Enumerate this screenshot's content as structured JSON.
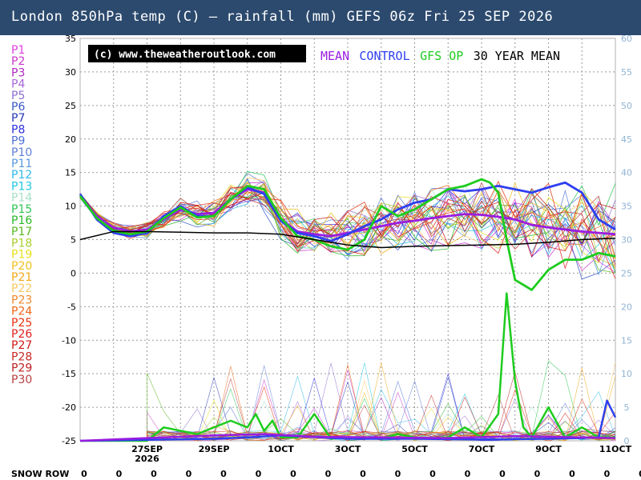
{
  "title": "London 850hPa temp (C) — rainfall (mm)   GEFS 06z Fri 25 SEP 2026",
  "credit": "(c) www.theweatheroutlook.com",
  "legend": [
    {
      "label": "MEAN",
      "color": "#9a1de0"
    },
    {
      "label": "CONTROL",
      "color": "#2f3ff0"
    },
    {
      "label": "GFS OP",
      "color": "#1ecc1e"
    },
    {
      "label": "30 YEAR MEAN",
      "color": "#000000"
    }
  ],
  "members": [
    {
      "label": "P1",
      "color": "#e040e0"
    },
    {
      "label": "P2",
      "color": "#c838c8"
    },
    {
      "label": "P3",
      "color": "#b028c0"
    },
    {
      "label": "P4",
      "color": "#a868d8"
    },
    {
      "label": "P5",
      "color": "#9070d0"
    },
    {
      "label": "P6",
      "color": "#3858c8"
    },
    {
      "label": "P7",
      "color": "#2838b8"
    },
    {
      "label": "P8",
      "color": "#3030e0"
    },
    {
      "label": "P9",
      "color": "#5070d8"
    },
    {
      "label": "P10",
      "color": "#6080d8"
    },
    {
      "label": "P11",
      "color": "#5898e0"
    },
    {
      "label": "P12",
      "color": "#30b8e8"
    },
    {
      "label": "P13",
      "color": "#20c8e0"
    },
    {
      "label": "P14",
      "color": "#a8e0c8"
    },
    {
      "label": "P15",
      "color": "#30c858"
    },
    {
      "label": "P16",
      "color": "#28b828"
    },
    {
      "label": "P17",
      "color": "#58b820"
    },
    {
      "label": "P18",
      "color": "#a8d030"
    },
    {
      "label": "P19",
      "color": "#e8e020"
    },
    {
      "label": "P20",
      "color": "#f0c020"
    },
    {
      "label": "P21",
      "color": "#f0a818"
    },
    {
      "label": "P22",
      "color": "#f8c860"
    },
    {
      "label": "P23",
      "color": "#f08830"
    },
    {
      "label": "P24",
      "color": "#f06818"
    },
    {
      "label": "P25",
      "color": "#e83010"
    },
    {
      "label": "P26",
      "color": "#e02020"
    },
    {
      "label": "P27",
      "color": "#d01818"
    },
    {
      "label": "P28",
      "color": "#c82828"
    },
    {
      "label": "P29",
      "color": "#c02020"
    },
    {
      "label": "P30",
      "color": "#b84040"
    }
  ],
  "snow_row": {
    "label": "SNOW ROW",
    "values": [
      0,
      0,
      0,
      0,
      0,
      0,
      0,
      0,
      0,
      0,
      0,
      0,
      0,
      0,
      0,
      0,
      0
    ]
  },
  "chart_data": {
    "type": "line",
    "title": "London 850hPa temp (C) — rainfall (mm)   GEFS 06z Fri 25 SEP 2026",
    "left_axis": {
      "label": "850hPa temp (C)",
      "ylim": [
        -25,
        35
      ],
      "ticks": [
        35,
        30,
        25,
        20,
        15,
        10,
        5,
        0,
        -5,
        -10,
        -15,
        -20,
        -25
      ]
    },
    "right_axis": {
      "label": "rainfall (mm)",
      "ylim": [
        0,
        60
      ],
      "ticks": [
        60,
        55,
        50,
        45,
        40,
        35,
        30,
        25,
        20,
        15,
        10,
        5,
        0
      ]
    },
    "x_range": [
      0,
      64
    ],
    "x_ticks": [
      {
        "x": 8,
        "label": "27SEP"
      },
      {
        "x": 16,
        "label": "29SEP"
      },
      {
        "x": 24,
        "label": "1OCT"
      },
      {
        "x": 32,
        "label": "3OCT"
      },
      {
        "x": 40,
        "label": "5OCT"
      },
      {
        "x": 48,
        "label": "7OCT"
      },
      {
        "x": 56,
        "label": "9OCT"
      },
      {
        "x": 64,
        "label": "11OCT"
      }
    ],
    "x_sublabel": {
      "x": 8,
      "label": "2026"
    },
    "grid": true,
    "series": [
      {
        "name": "MEAN",
        "axis": "temp",
        "x": [
          0,
          2,
          4,
          6,
          8,
          10,
          12,
          14,
          16,
          18,
          20,
          22,
          24,
          26,
          28,
          30,
          32,
          34,
          36,
          38,
          40,
          42,
          44,
          46,
          48,
          50,
          52,
          54,
          56,
          58,
          60,
          62,
          64
        ],
        "values": [
          11.5,
          8.5,
          6.8,
          6.2,
          6.5,
          8,
          9.5,
          8.8,
          9,
          11,
          12.5,
          12,
          8,
          6.2,
          5.8,
          5.5,
          6,
          6.5,
          7,
          7.5,
          7.8,
          8.2,
          8.5,
          8.8,
          8.7,
          8.4,
          8,
          7.2,
          6.8,
          6.5,
          6.2,
          6,
          5.8
        ]
      },
      {
        "name": "CONTROL",
        "axis": "temp",
        "x": [
          0,
          2,
          4,
          6,
          8,
          10,
          12,
          14,
          16,
          18,
          20,
          22,
          24,
          26,
          28,
          30,
          32,
          34,
          36,
          38,
          40,
          42,
          44,
          46,
          48,
          50,
          52,
          54,
          56,
          58,
          60,
          62,
          64
        ],
        "values": [
          11.8,
          8,
          6,
          5.5,
          6,
          8.5,
          10,
          8.5,
          8.5,
          11,
          12.8,
          11.8,
          7.8,
          6,
          5.5,
          4.8,
          5.8,
          7,
          8,
          9.5,
          10.5,
          11,
          12.5,
          12.2,
          12.5,
          13,
          12.5,
          12,
          12.8,
          13.5,
          12,
          8,
          6.5
        ]
      },
      {
        "name": "GFS OP",
        "axis": "temp",
        "x": [
          0,
          2,
          4,
          6,
          8,
          10,
          12,
          14,
          16,
          18,
          20,
          22,
          24,
          26,
          28,
          30,
          32,
          34,
          36,
          38,
          40,
          42,
          44,
          46,
          48,
          49,
          50,
          51,
          52,
          54,
          56,
          58,
          60,
          62,
          64
        ],
        "values": [
          11.5,
          8.2,
          6.3,
          5.8,
          6.2,
          8.2,
          9.8,
          8.3,
          8.5,
          11,
          13,
          12.5,
          8.2,
          5.5,
          5,
          4,
          3.5,
          5,
          10,
          8.5,
          9.5,
          11,
          12.5,
          13,
          14,
          13.5,
          12,
          5,
          -1,
          -2.5,
          0.5,
          2,
          2,
          3,
          2.5
        ]
      },
      {
        "name": "30 YEAR MEAN",
        "axis": "temp",
        "x": [
          0,
          4,
          8,
          12,
          16,
          20,
          24,
          28,
          32,
          36,
          40,
          44,
          48,
          52,
          56,
          60,
          64
        ],
        "values": [
          5,
          6.2,
          6.2,
          6.1,
          6,
          6,
          5.8,
          5,
          4.2,
          3.8,
          4,
          4.1,
          4.2,
          4.3,
          4.6,
          5,
          5.2
        ]
      },
      {
        "name": "GFS OP rainfall",
        "axis": "rain",
        "x": [
          0,
          8,
          10,
          12,
          14,
          16,
          18,
          20,
          21,
          22,
          23,
          24,
          26,
          28,
          30,
          32,
          34,
          36,
          38,
          40,
          42,
          44,
          46,
          48,
          50,
          51,
          52,
          53,
          54,
          56,
          58,
          60,
          62,
          64
        ],
        "values": [
          0,
          0,
          2,
          1.5,
          1,
          2,
          3,
          2,
          4,
          1.5,
          3,
          0.5,
          0.5,
          4,
          0.3,
          0.5,
          0.5,
          0.3,
          1,
          0.5,
          0.3,
          0.5,
          2,
          0.5,
          4,
          22,
          9,
          2,
          0.5,
          5,
          0.5,
          2,
          0.5,
          0.5
        ]
      },
      {
        "name": "CONTROL rainfall",
        "axis": "rain",
        "x": [
          0,
          16,
          20,
          24,
          32,
          40,
          48,
          56,
          60,
          62,
          63,
          64
        ],
        "values": [
          0,
          0.3,
          0.5,
          0.8,
          0.3,
          0.3,
          0.2,
          0.3,
          0.4,
          0.5,
          6,
          3.5
        ]
      },
      {
        "name": "MEAN rainfall",
        "axis": "rain",
        "x": [
          0,
          10,
          16,
          22,
          28,
          36,
          44,
          52,
          60,
          64
        ],
        "values": [
          0,
          0.5,
          0.8,
          1,
          0.6,
          0.5,
          0.4,
          0.7,
          0.5,
          0.4
        ]
      }
    ]
  }
}
